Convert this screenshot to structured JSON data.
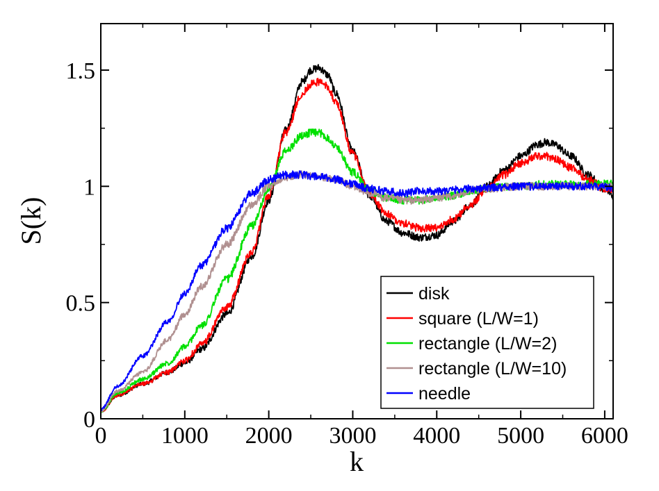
{
  "chart_data": {
    "type": "line",
    "title": "",
    "xlabel": "k",
    "ylabel": "S(k)",
    "xlim": [
      0,
      6100
    ],
    "ylim": [
      0,
      1.7
    ],
    "xticks": [
      {
        "value": 0,
        "label": "0"
      },
      {
        "value": 1000,
        "label": "1000"
      },
      {
        "value": 2000,
        "label": "2000"
      },
      {
        "value": 3000,
        "label": "3000"
      },
      {
        "value": 4000,
        "label": "4000"
      },
      {
        "value": 5000,
        "label": "5000"
      },
      {
        "value": 6000,
        "label": "6000"
      }
    ],
    "yticks": [
      {
        "value": 0,
        "label": "0"
      },
      {
        "value": 0.5,
        "label": "0.5"
      },
      {
        "value": 1,
        "label": "1"
      },
      {
        "value": 1.5,
        "label": "1.5"
      }
    ],
    "grid": false,
    "legend_position": "bottom-right",
    "series": [
      {
        "name": "disk",
        "color": "#000000",
        "noise": 0.012,
        "x": [
          0,
          200,
          500,
          800,
          1000,
          1200,
          1500,
          1800,
          2000,
          2200,
          2400,
          2500,
          2600,
          2700,
          2800,
          3000,
          3200,
          3400,
          3600,
          3800,
          4000,
          4200,
          4400,
          4600,
          4800,
          5000,
          5200,
          5300,
          5400,
          5600,
          5800,
          6000,
          6100
        ],
        "y": [
          0.03,
          0.1,
          0.15,
          0.2,
          0.24,
          0.3,
          0.45,
          0.7,
          0.94,
          1.24,
          1.45,
          1.5,
          1.51,
          1.48,
          1.4,
          1.15,
          0.96,
          0.85,
          0.8,
          0.78,
          0.79,
          0.85,
          0.92,
          1.0,
          1.07,
          1.13,
          1.18,
          1.19,
          1.18,
          1.13,
          1.05,
          0.99,
          0.96
        ]
      },
      {
        "name": "square (L/W=1)",
        "color": "#ff0000",
        "noise": 0.012,
        "x": [
          0,
          200,
          500,
          800,
          1000,
          1200,
          1500,
          1800,
          2000,
          2200,
          2400,
          2500,
          2600,
          2700,
          2800,
          3000,
          3200,
          3400,
          3600,
          3800,
          4000,
          4200,
          4400,
          4600,
          4800,
          5000,
          5200,
          5300,
          5400,
          5600,
          5800,
          6000,
          6100
        ],
        "y": [
          0.03,
          0.1,
          0.15,
          0.2,
          0.25,
          0.32,
          0.48,
          0.72,
          0.96,
          1.23,
          1.4,
          1.44,
          1.45,
          1.43,
          1.36,
          1.14,
          0.97,
          0.88,
          0.84,
          0.82,
          0.82,
          0.86,
          0.92,
          0.99,
          1.05,
          1.1,
          1.13,
          1.13,
          1.12,
          1.08,
          1.03,
          0.99,
          0.98
        ]
      },
      {
        "name": "rectangle (L/W=2)",
        "color": "#00e000",
        "noise": 0.012,
        "x": [
          0,
          200,
          500,
          800,
          1000,
          1200,
          1500,
          1800,
          2000,
          2200,
          2400,
          2500,
          2600,
          2700,
          2800,
          3000,
          3200,
          3400,
          3600,
          3800,
          4000,
          4200,
          4400,
          4600,
          4800,
          5000,
          5300,
          5600,
          6000,
          6100
        ],
        "y": [
          0.03,
          0.11,
          0.17,
          0.24,
          0.31,
          0.4,
          0.6,
          0.83,
          0.99,
          1.15,
          1.22,
          1.23,
          1.23,
          1.21,
          1.17,
          1.06,
          0.98,
          0.95,
          0.94,
          0.94,
          0.95,
          0.96,
          0.98,
          0.99,
          1.0,
          1.0,
          1.01,
          1.01,
          1.01,
          1.01
        ]
      },
      {
        "name": "rectangle (L/W=10)",
        "color": "#b09090",
        "noise": 0.012,
        "x": [
          0,
          200,
          500,
          800,
          1000,
          1200,
          1500,
          1800,
          2000,
          2200,
          2400,
          2600,
          2800,
          3000,
          3200,
          3400,
          3600,
          3800,
          4000,
          4200,
          4400,
          4600,
          5000,
          5500,
          6000,
          6100
        ],
        "y": [
          0.03,
          0.12,
          0.2,
          0.34,
          0.45,
          0.57,
          0.75,
          0.92,
          1.0,
          1.04,
          1.05,
          1.04,
          1.03,
          1.0,
          0.97,
          0.95,
          0.94,
          0.94,
          0.95,
          0.96,
          0.98,
          0.99,
          1.0,
          1.0,
          1.0,
          1.0
        ]
      },
      {
        "name": "needle",
        "color": "#0000ff",
        "noise": 0.012,
        "x": [
          0,
          200,
          500,
          800,
          1000,
          1200,
          1500,
          1800,
          2000,
          2200,
          2400,
          2600,
          2800,
          3000,
          3200,
          3400,
          3600,
          3800,
          4000,
          4400,
          5000,
          5500,
          6000,
          6100
        ],
        "y": [
          0.04,
          0.14,
          0.27,
          0.42,
          0.54,
          0.66,
          0.82,
          0.97,
          1.03,
          1.05,
          1.05,
          1.04,
          1.03,
          1.01,
          0.99,
          0.98,
          0.97,
          0.98,
          0.98,
          0.99,
          1.0,
          1.0,
          1.0,
          0.99
        ]
      }
    ]
  }
}
